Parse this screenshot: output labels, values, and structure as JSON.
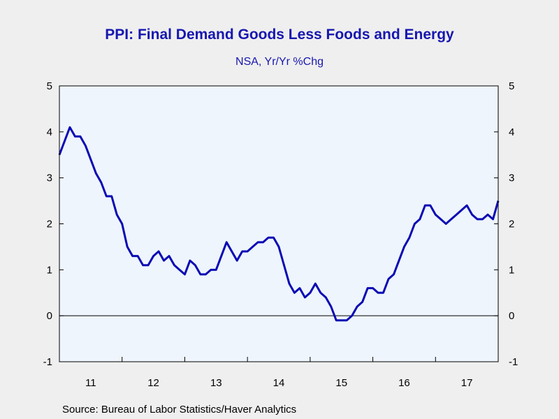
{
  "chart_data": {
    "type": "line",
    "title": "PPI: Final Demand Goods Less Foods and Energy",
    "subtitle": "NSA, Yr/Yr %Chg",
    "source": "Source:  Bureau of Labor Statistics/Haver Analytics",
    "ylim": [
      -1,
      5
    ],
    "y_ticks": [
      -1,
      0,
      1,
      2,
      3,
      4,
      5
    ],
    "x_labels": [
      "11",
      "12",
      "13",
      "14",
      "15",
      "16",
      "17"
    ],
    "x_label_years": [
      2011,
      2012,
      2013,
      2014,
      2015,
      2016,
      2017
    ],
    "x_range": [
      "2011-01",
      "2017-12"
    ],
    "grid": false,
    "zero_line": true,
    "line_color": "#0a0ab4",
    "plot_background": "#eef5fd",
    "series": [
      {
        "start": "2011-01",
        "frequency": "monthly",
        "values": [
          3.5,
          3.8,
          4.1,
          3.9,
          3.9,
          3.7,
          3.4,
          3.1,
          2.9,
          2.6,
          2.6,
          2.2,
          2.0,
          1.5,
          1.3,
          1.3,
          1.1,
          1.1,
          1.3,
          1.4,
          1.2,
          1.3,
          1.1,
          1.0,
          0.9,
          1.2,
          1.1,
          0.9,
          0.9,
          1.0,
          1.0,
          1.3,
          1.6,
          1.4,
          1.2,
          1.4,
          1.4,
          1.5,
          1.6,
          1.6,
          1.7,
          1.7,
          1.5,
          1.1,
          0.7,
          0.5,
          0.6,
          0.4,
          0.5,
          0.7,
          0.5,
          0.4,
          0.2,
          -0.1,
          -0.1,
          -0.1,
          0.0,
          0.2,
          0.3,
          0.6,
          0.6,
          0.5,
          0.5,
          0.8,
          0.9,
          1.2,
          1.5,
          1.7,
          2.0,
          2.1,
          2.4,
          2.4,
          2.2,
          2.1,
          2.0,
          2.1,
          2.2,
          2.3,
          2.4,
          2.2,
          2.1,
          2.1,
          2.2,
          2.1,
          2.5
        ]
      }
    ]
  }
}
